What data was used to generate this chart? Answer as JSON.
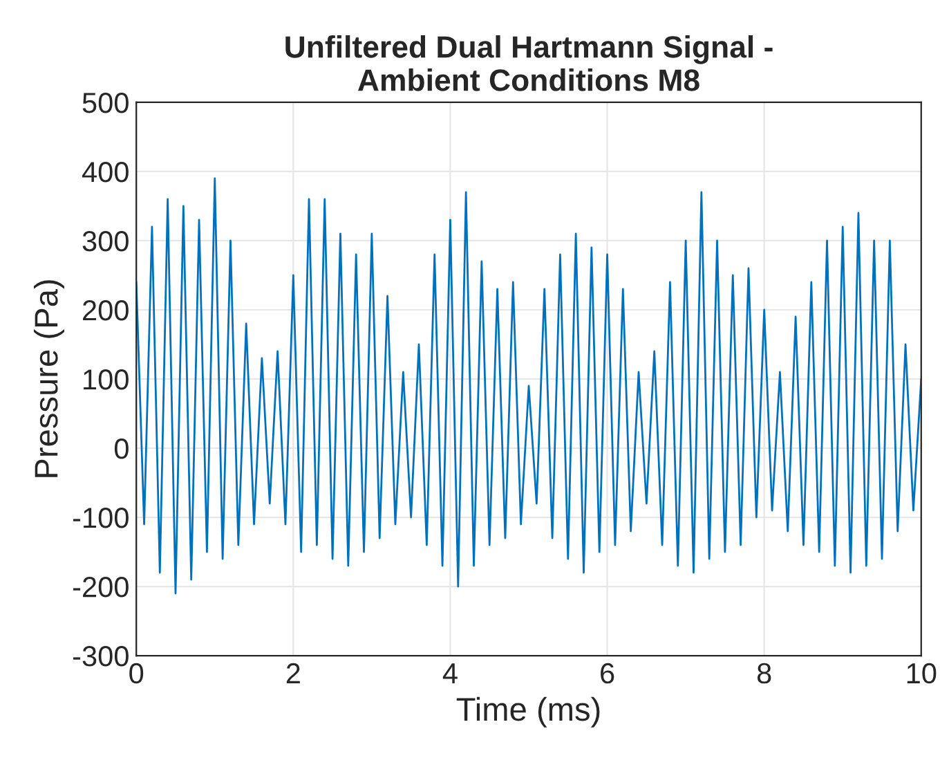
{
  "chart_data": {
    "type": "line",
    "title": "Unfiltered Dual Hartmann Signal -\nAmbient Conditions M8",
    "xlabel": "Time (ms)",
    "ylabel": "Pressure (Pa)",
    "x": [
      0.0,
      0.1,
      0.2,
      0.3,
      0.4,
      0.5,
      0.6,
      0.7,
      0.8,
      0.9,
      1.0,
      1.1,
      1.2,
      1.3,
      1.4,
      1.5,
      1.6,
      1.7,
      1.8,
      1.9,
      2.0,
      2.1,
      2.2,
      2.3,
      2.4,
      2.5,
      2.6,
      2.7,
      2.8,
      2.9,
      3.0,
      3.1,
      3.2,
      3.3,
      3.4,
      3.5,
      3.6,
      3.7,
      3.8,
      3.9,
      4.0,
      4.1,
      4.2,
      4.3,
      4.4,
      4.5,
      4.6,
      4.7,
      4.8,
      4.9,
      5.0,
      5.1,
      5.2,
      5.3,
      5.4,
      5.5,
      5.6,
      5.7,
      5.8,
      5.9,
      6.0,
      6.1,
      6.2,
      6.3,
      6.4,
      6.5,
      6.6,
      6.7,
      6.8,
      6.9,
      7.0,
      7.1,
      7.2,
      7.3,
      7.4,
      7.5,
      7.6,
      7.7,
      7.8,
      7.9,
      8.0,
      8.1,
      8.2,
      8.3,
      8.4,
      8.5,
      8.6,
      8.7,
      8.8,
      8.9,
      9.0,
      9.1,
      9.2,
      9.3,
      9.4,
      9.5,
      9.6,
      9.7,
      9.8,
      9.9,
      10.0
    ],
    "series": [
      {
        "color": "#0072bd",
        "values": [
          240,
          -110,
          320,
          -180,
          360,
          -210,
          350,
          -190,
          330,
          -150,
          390,
          -160,
          300,
          -140,
          180,
          -110,
          130,
          -80,
          140,
          -110,
          250,
          -150,
          360,
          -140,
          360,
          -160,
          310,
          -170,
          280,
          -150,
          310,
          -130,
          220,
          -110,
          110,
          -100,
          150,
          -140,
          280,
          -170,
          330,
          -200,
          370,
          -170,
          270,
          -140,
          230,
          -130,
          240,
          -110,
          90,
          -80,
          230,
          -130,
          280,
          -160,
          310,
          -180,
          290,
          -150,
          280,
          -140,
          230,
          -120,
          110,
          -80,
          140,
          -140,
          240,
          -170,
          300,
          -180,
          370,
          -160,
          300,
          -150,
          250,
          -140,
          260,
          -100,
          200,
          -90,
          110,
          -120,
          190,
          -140,
          240,
          -150,
          300,
          -170,
          320,
          -180,
          340,
          -170,
          300,
          -160,
          300,
          -120,
          150,
          -90,
          100
        ]
      }
    ],
    "xlim": [
      0,
      10
    ],
    "ylim": [
      -300,
      500
    ],
    "xticks": [
      0,
      2,
      4,
      6,
      8,
      10
    ],
    "yticks": [
      -300,
      -200,
      -100,
      0,
      100,
      200,
      300,
      400,
      500
    ],
    "grid": true,
    "line_style": "solid"
  }
}
